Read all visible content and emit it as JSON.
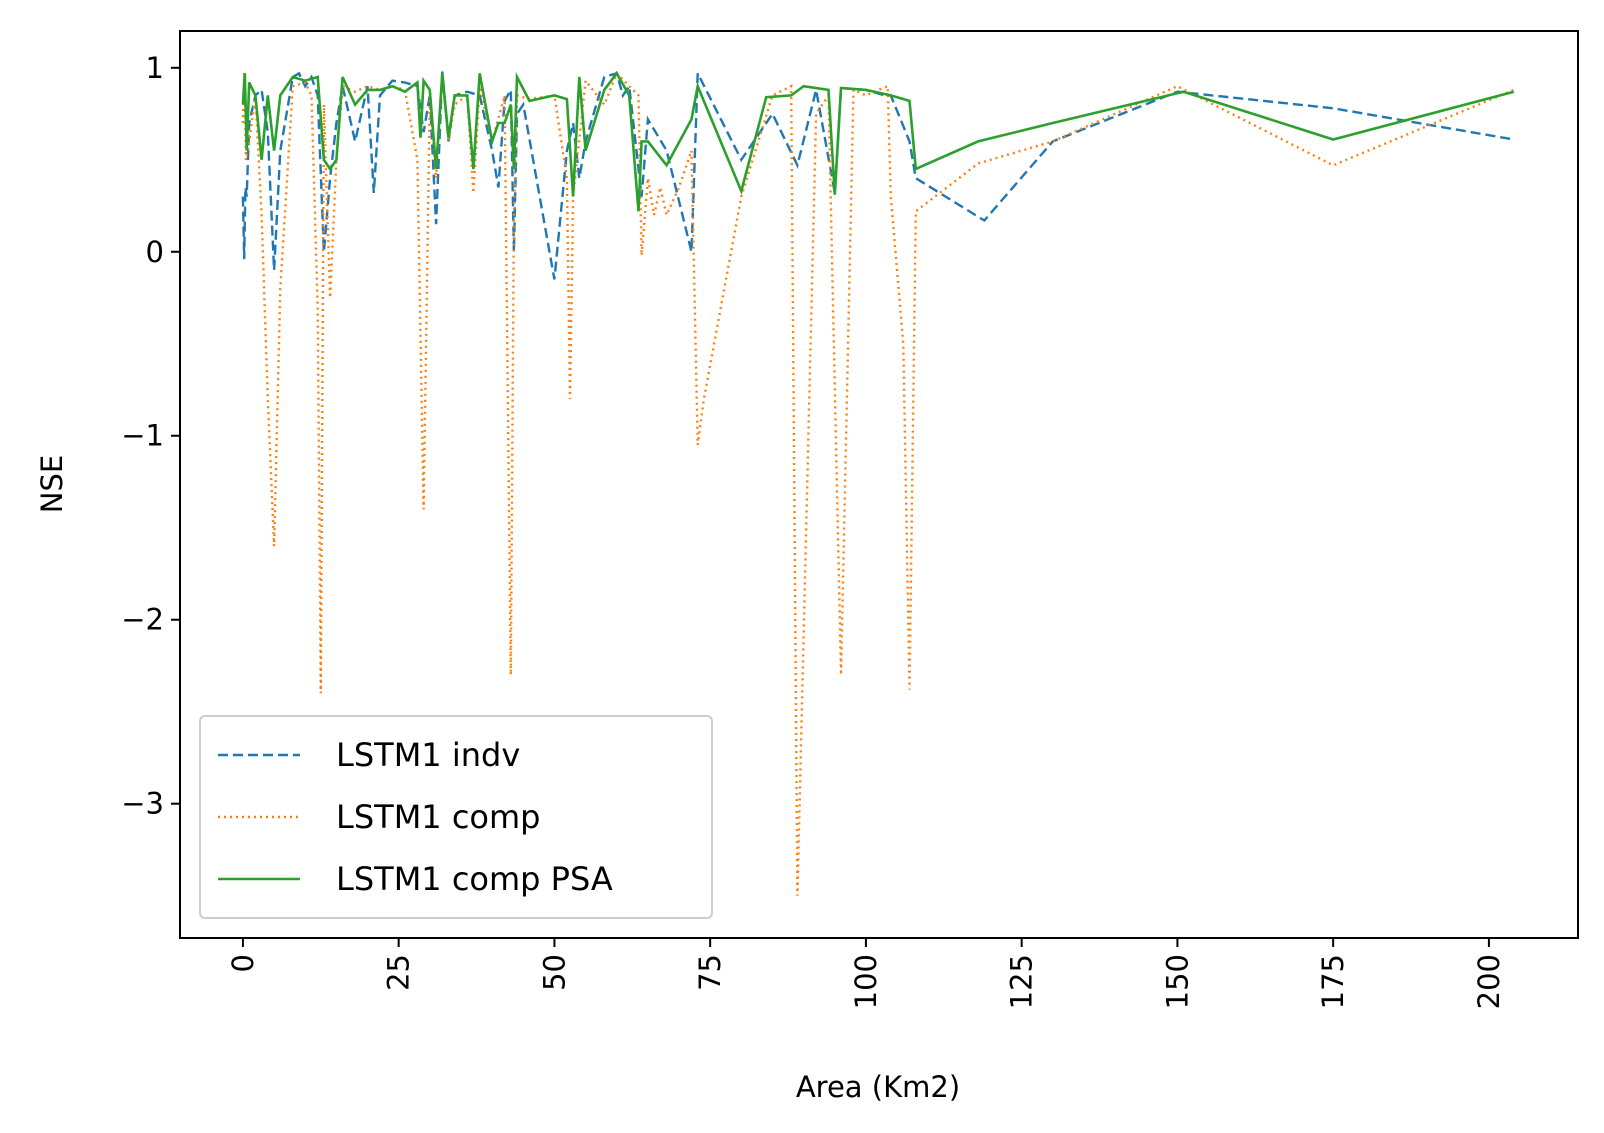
{
  "chart_data": {
    "type": "line",
    "title": "",
    "xlabel": "Area (Km2)",
    "ylabel": "NSE",
    "xlim": [
      -10.1,
      214.3
    ],
    "ylim": [
      -3.73,
      1.2
    ],
    "xticks": [
      0,
      25,
      50,
      75,
      100,
      125,
      150,
      175,
      200
    ],
    "xtick_labels": [
      "0",
      "25",
      "50",
      "75",
      "100",
      "125",
      "150",
      "175",
      "200"
    ],
    "xtick_rotation": 90,
    "yticks": [
      1,
      0,
      -1,
      -2,
      -3
    ],
    "ytick_labels": [
      "1",
      "0",
      "−1",
      "−2",
      "−3"
    ],
    "grid": false,
    "legend_position": "lower-left",
    "series": [
      {
        "name": "LSTM1 indv",
        "color": "#1f77b4",
        "style": "dashed",
        "x": [
          0,
          0.2,
          0.4,
          0.6,
          1,
          2,
          3,
          4,
          5,
          6,
          8,
          9,
          10,
          11,
          12,
          13,
          14,
          15,
          16,
          18,
          20,
          21,
          22,
          24,
          26,
          28,
          29,
          30,
          31,
          32,
          33,
          34,
          36,
          38,
          40,
          41,
          42,
          43,
          43.5,
          44,
          45,
          50,
          52,
          53,
          54,
          55,
          58,
          60,
          61,
          62,
          64,
          65,
          68,
          72,
          73,
          80,
          85,
          89,
          92,
          95,
          96,
          100,
          103,
          104,
          107,
          108,
          119,
          130,
          150,
          175,
          204
        ],
        "y": [
          0.3,
          -0.04,
          0.35,
          0.3,
          0.7,
          0.85,
          0.88,
          0.65,
          -0.1,
          0.55,
          0.95,
          0.97,
          0.9,
          0.95,
          0.85,
          0.0,
          0.4,
          0.7,
          0.9,
          0.6,
          0.9,
          0.32,
          0.85,
          0.93,
          0.92,
          0.9,
          0.65,
          0.85,
          0.15,
          0.98,
          0.6,
          0.85,
          0.87,
          0.85,
          0.55,
          0.35,
          0.82,
          0.88,
          0.0,
          0.75,
          0.8,
          -0.15,
          0.55,
          0.7,
          0.4,
          0.6,
          0.95,
          0.97,
          0.85,
          0.9,
          0.3,
          0.72,
          0.55,
          0.0,
          0.97,
          0.5,
          0.75,
          0.47,
          0.88,
          0.32,
          0.89,
          0.88,
          0.85,
          0.85,
          0.6,
          0.4,
          0.17,
          0.6,
          0.87,
          0.78,
          0.61
        ]
      },
      {
        "name": "LSTM1 comp",
        "color": "#ff7f0e",
        "style": "dotted",
        "x": [
          0,
          0.2,
          0.5,
          1,
          2,
          3,
          4,
          5,
          6,
          8,
          10,
          11,
          12,
          12.5,
          13,
          14,
          15,
          16,
          18,
          20,
          22,
          24,
          26,
          28,
          29,
          30,
          31,
          32,
          33,
          34,
          36,
          37,
          38,
          40,
          42,
          43,
          43.5,
          44,
          46,
          50,
          52,
          52.5,
          53,
          55,
          58,
          60,
          62,
          63.5,
          64,
          65,
          66,
          67,
          68,
          70,
          72,
          73,
          74,
          80,
          85,
          88,
          89,
          92,
          94,
          96,
          98,
          100,
          102,
          103.5,
          104,
          106,
          107,
          108,
          118,
          130,
          150,
          175,
          204
        ],
        "y": [
          0.7,
          0.98,
          0.5,
          0.6,
          0.85,
          0.2,
          -0.8,
          -1.6,
          -0.2,
          0.9,
          0.92,
          0.85,
          -0.3,
          -2.4,
          0.8,
          -0.25,
          0.5,
          0.9,
          0.87,
          0.9,
          0.88,
          0.9,
          0.88,
          0.5,
          -1.4,
          0.85,
          0.4,
          0.95,
          0.6,
          0.8,
          0.85,
          0.32,
          0.9,
          0.6,
          0.85,
          -2.3,
          0.2,
          0.85,
          0.83,
          0.85,
          0.4,
          -0.8,
          0.3,
          0.93,
          0.8,
          0.97,
          0.9,
          0.85,
          -0.02,
          0.4,
          0.2,
          0.35,
          0.2,
          0.35,
          0.55,
          -1.05,
          -0.8,
          0.3,
          0.85,
          0.9,
          -3.5,
          0.75,
          0.85,
          -2.3,
          0.88,
          0.85,
          0.88,
          0.9,
          0.3,
          -0.5,
          -2.38,
          0.22,
          0.48,
          0.6,
          0.9,
          0.47,
          0.88
        ]
      },
      {
        "name": "LSTM1 comp PSA",
        "color": "#2ca02c",
        "style": "solid",
        "x": [
          0,
          0.3,
          0.6,
          1,
          2,
          3,
          4,
          5,
          6,
          8,
          10,
          12,
          13,
          14,
          15,
          16,
          18,
          20,
          22,
          24,
          26,
          28,
          28.5,
          29,
          30,
          31,
          32,
          33,
          34,
          36,
          37,
          38,
          40,
          41,
          42,
          43,
          43.5,
          44,
          46,
          50,
          52,
          53,
          54,
          55,
          58,
          60,
          62,
          63.5,
          64,
          65,
          68,
          72,
          73,
          80,
          84,
          88,
          90,
          94,
          95,
          96,
          100,
          104,
          107,
          108,
          118,
          130,
          151,
          175,
          204
        ],
        "y": [
          0.8,
          0.97,
          0.55,
          0.92,
          0.85,
          0.5,
          0.85,
          0.55,
          0.85,
          0.95,
          0.93,
          0.95,
          0.5,
          0.45,
          0.5,
          0.95,
          0.8,
          0.88,
          0.88,
          0.9,
          0.87,
          0.92,
          0.62,
          0.93,
          0.88,
          0.45,
          0.97,
          0.62,
          0.85,
          0.85,
          0.45,
          0.97,
          0.6,
          0.7,
          0.7,
          0.8,
          0.45,
          0.95,
          0.82,
          0.85,
          0.83,
          0.3,
          0.95,
          0.55,
          0.88,
          0.97,
          0.85,
          0.22,
          0.6,
          0.6,
          0.47,
          0.72,
          0.9,
          0.33,
          0.84,
          0.85,
          0.9,
          0.88,
          0.31,
          0.89,
          0.88,
          0.85,
          0.82,
          0.45,
          0.6,
          0.7,
          0.87,
          0.61,
          0.87
        ]
      }
    ]
  }
}
